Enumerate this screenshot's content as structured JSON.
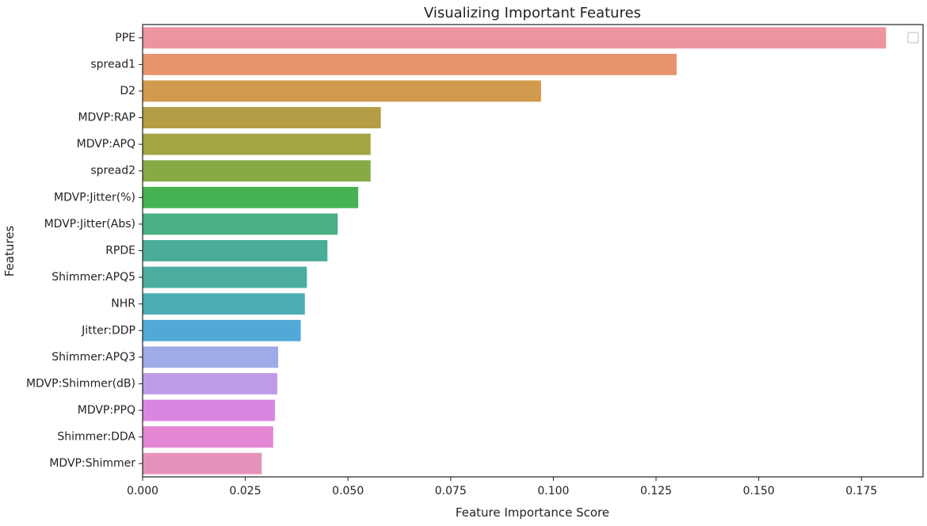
{
  "chart_data": {
    "type": "bar",
    "orientation": "horizontal",
    "title": "Visualizing Important Features",
    "xlabel": "Feature Importance Score",
    "ylabel": "Features",
    "xlim": [
      0.0,
      0.19
    ],
    "xticks": [
      "0.000",
      "0.025",
      "0.050",
      "0.075",
      "0.100",
      "0.125",
      "0.150",
      "0.175"
    ],
    "grid": false,
    "legend": "top-right, empty",
    "categories": [
      "PPE",
      "spread1",
      "D2",
      "MDVP:RAP",
      "MDVP:APQ",
      "spread2",
      "MDVP:Jitter(%)",
      "MDVP:Jitter(Abs)",
      "RPDE",
      "Shimmer:APQ5",
      "NHR",
      "Jitter:DDP",
      "Shimmer:APQ3",
      "MDVP:Shimmer(dB)",
      "MDVP:PPQ",
      "Shimmer:DDA",
      "MDVP:Shimmer"
    ],
    "values": [
      0.181,
      0.13,
      0.097,
      0.058,
      0.0555,
      0.0555,
      0.0525,
      0.0475,
      0.045,
      0.04,
      0.0395,
      0.0385,
      0.033,
      0.0328,
      0.0322,
      0.0318,
      0.029
    ],
    "colors": [
      "#ec94a0",
      "#e7936e",
      "#d19a4c",
      "#b49d44",
      "#a2a542",
      "#88aa45",
      "#46b352",
      "#49b084",
      "#4aad99",
      "#4bac9f",
      "#4cadb5",
      "#51a9d7",
      "#9fabe7",
      "#c09ce6",
      "#d986e3",
      "#e386d3",
      "#e592bb"
    ]
  }
}
